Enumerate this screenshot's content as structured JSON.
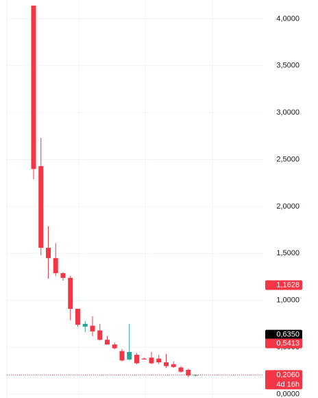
{
  "chart_data": {
    "type": "candlestick",
    "ylim": [
      -0.04,
      4.2
    ],
    "yticks": [
      {
        "value": 0,
        "label": "0,0000"
      },
      {
        "value": 0.5,
        "label": "0,5000"
      },
      {
        "value": 1,
        "label": "1,0000"
      },
      {
        "value": 1.5,
        "label": "1,5000"
      },
      {
        "value": 2,
        "label": "2,0000"
      },
      {
        "value": 2.5,
        "label": "2,5000"
      },
      {
        "value": 3,
        "label": "3,0000"
      },
      {
        "value": 3.5,
        "label": "3,5000"
      },
      {
        "value": 4,
        "label": "4,0000"
      }
    ],
    "grid": true,
    "up_color": "#26a69a",
    "down_color": "#f23645",
    "open": [
      4.14,
      2.43,
      1.56,
      1.45,
      1.29,
      1.24,
      0.91,
      0.72,
      0.73,
      0.68,
      0.58,
      0.53,
      0.46,
      0.37,
      0.42,
      0.38,
      0.39,
      0.38,
      0.34,
      0.32,
      0.285,
      0.26,
      0.2
    ],
    "high": [
      4.14,
      2.73,
      1.79,
      1.61,
      1.3,
      1.26,
      0.91,
      0.78,
      0.83,
      0.75,
      0.62,
      0.55,
      0.48,
      0.75,
      0.44,
      0.39,
      0.45,
      0.42,
      0.43,
      0.35,
      0.3,
      0.27,
      0.21
    ],
    "low": [
      2.29,
      1.48,
      1.23,
      1.26,
      1.21,
      0.79,
      0.72,
      0.66,
      0.62,
      0.57,
      0.53,
      0.48,
      0.35,
      0.36,
      0.32,
      0.37,
      0.32,
      0.32,
      0.28,
      0.28,
      0.23,
      0.18,
      0.19
    ],
    "close": [
      2.4,
      1.56,
      1.45,
      1.29,
      1.24,
      0.91,
      0.74,
      0.75,
      0.67,
      0.58,
      0.53,
      0.49,
      0.36,
      0.45,
      0.33,
      0.37,
      0.33,
      0.34,
      0.3,
      0.29,
      0.24,
      0.2,
      0.206
    ],
    "price_labels": [
      {
        "value": 1.1628,
        "label": "1,1628",
        "color": "#f23645"
      },
      {
        "value": 0.635,
        "label": "0,6350",
        "color": "#000000"
      },
      {
        "value": 0.5413,
        "label": "0,5413",
        "color": "#f23645"
      },
      {
        "value": 0.206,
        "label": "0,2060",
        "color": "#f23645",
        "countdown": "4d 16h"
      }
    ]
  }
}
